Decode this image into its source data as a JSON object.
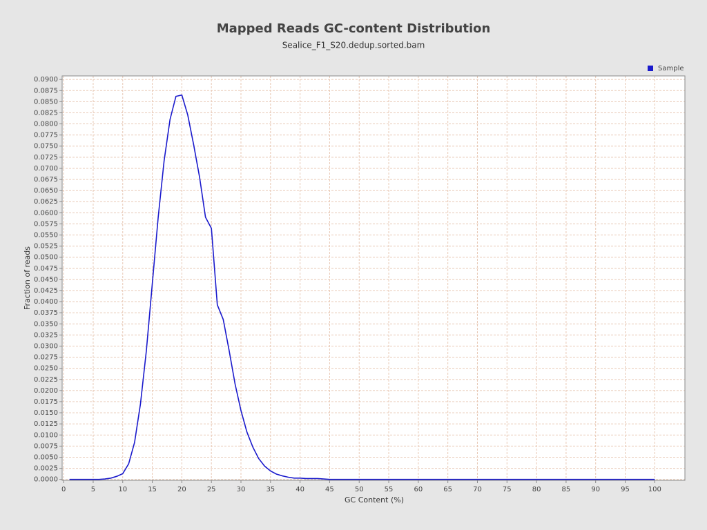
{
  "chart_data": {
    "type": "line",
    "title": "Mapped Reads GC-content Distribution",
    "subtitle": "Sealice_F1_S20.dedup.sorted.bam",
    "x_label": "GC Content (%)",
    "y_label": "Fraction of reads",
    "legend": "top-right",
    "grid": true,
    "x": [
      1,
      2,
      3,
      4,
      5,
      6,
      7,
      8,
      9,
      10,
      11,
      12,
      13,
      14,
      15,
      16,
      17,
      18,
      19,
      20,
      21,
      22,
      23,
      24,
      25,
      26,
      27,
      28,
      29,
      30,
      31,
      32,
      33,
      34,
      35,
      36,
      37,
      38,
      39,
      40,
      41,
      42,
      43,
      44,
      45,
      46,
      47,
      48,
      49,
      50,
      51,
      52,
      53,
      54,
      55,
      56,
      57,
      58,
      59,
      60,
      61,
      62,
      63,
      64,
      65,
      66,
      67,
      68,
      69,
      70,
      71,
      72,
      73,
      74,
      75,
      76,
      77,
      78,
      79,
      80,
      81,
      82,
      83,
      84,
      85,
      86,
      87,
      88,
      89,
      90,
      91,
      92,
      93,
      94,
      95,
      96,
      97,
      98,
      99,
      100
    ],
    "series": [
      {
        "name": "Sample",
        "color": "#1a1acc",
        "values": [
          0,
          0,
          0,
          0,
          0,
          0,
          0.0001,
          0.0003,
          0.0007,
          0.0013,
          0.0035,
          0.0083,
          0.017,
          0.029,
          0.044,
          0.059,
          0.0717,
          0.081,
          0.0862,
          0.0865,
          0.082,
          0.0753,
          0.068,
          0.059,
          0.0565,
          0.0393,
          0.036,
          0.029,
          0.0215,
          0.0155,
          0.0107,
          0.0073,
          0.0047,
          0.003,
          0.0019,
          0.0012,
          0.0008,
          0.0005,
          0.0003,
          0.0003,
          0.0002,
          0.0002,
          0.0002,
          0.0001,
          0,
          0,
          0,
          0,
          0,
          0,
          0,
          0,
          0,
          0,
          0,
          0,
          0,
          0,
          0,
          0,
          0,
          0,
          0,
          0,
          0,
          0,
          0,
          0,
          0,
          0,
          0,
          0,
          0,
          0,
          0,
          0,
          0,
          0,
          0,
          0,
          0,
          0,
          0,
          0,
          0,
          0,
          0,
          0,
          0,
          0,
          0,
          0,
          0,
          0,
          0,
          0,
          0,
          0,
          0,
          0
        ]
      }
    ],
    "xlim": [
      -0.25,
      105.1
    ],
    "xticks": [
      0,
      5,
      10,
      15,
      20,
      25,
      30,
      35,
      40,
      45,
      50,
      55,
      60,
      65,
      70,
      75,
      80,
      85,
      90,
      95,
      100
    ],
    "ylim": [
      -0.0002,
      0.0908
    ],
    "yticks": [
      {
        "value": 0,
        "label": "0.0000"
      },
      {
        "value": 0.0025,
        "label": "0.0025"
      },
      {
        "value": 0.005,
        "label": "0.0050"
      },
      {
        "value": 0.0075,
        "label": "0.0075"
      },
      {
        "value": 0.01,
        "label": "0.0100"
      },
      {
        "value": 0.0125,
        "label": "0.0125"
      },
      {
        "value": 0.015,
        "label": "0.0150"
      },
      {
        "value": 0.0175,
        "label": "0.0175"
      },
      {
        "value": 0.02,
        "label": "0.0200"
      },
      {
        "value": 0.0225,
        "label": "0.0225"
      },
      {
        "value": 0.025,
        "label": "0.0250"
      },
      {
        "value": 0.0275,
        "label": "0.0275"
      },
      {
        "value": 0.03,
        "label": "0.0300"
      },
      {
        "value": 0.0325,
        "label": "0.0325"
      },
      {
        "value": 0.035,
        "label": "0.0350"
      },
      {
        "value": 0.0375,
        "label": "0.0375"
      },
      {
        "value": 0.04,
        "label": "0.0400"
      },
      {
        "value": 0.0425,
        "label": "0.0425"
      },
      {
        "value": 0.045,
        "label": "0.0450"
      },
      {
        "value": 0.0475,
        "label": "0.0475"
      },
      {
        "value": 0.05,
        "label": "0.0500"
      },
      {
        "value": 0.0525,
        "label": "0.0525"
      },
      {
        "value": 0.055,
        "label": "0.0550"
      },
      {
        "value": 0.0575,
        "label": "0.0575"
      },
      {
        "value": 0.06,
        "label": "0.0600"
      },
      {
        "value": 0.0625,
        "label": "0.0625"
      },
      {
        "value": 0.065,
        "label": "0.0650"
      },
      {
        "value": 0.0675,
        "label": "0.0675"
      },
      {
        "value": 0.07,
        "label": "0.0700"
      },
      {
        "value": 0.0725,
        "label": "0.0725"
      },
      {
        "value": 0.075,
        "label": "0.0750"
      },
      {
        "value": 0.0775,
        "label": "0.0775"
      },
      {
        "value": 0.08,
        "label": "0.0800"
      },
      {
        "value": 0.0825,
        "label": "0.0825"
      },
      {
        "value": 0.085,
        "label": "0.0850"
      },
      {
        "value": 0.0875,
        "label": "0.0875"
      },
      {
        "value": 0.09,
        "label": "0.0900"
      }
    ]
  }
}
